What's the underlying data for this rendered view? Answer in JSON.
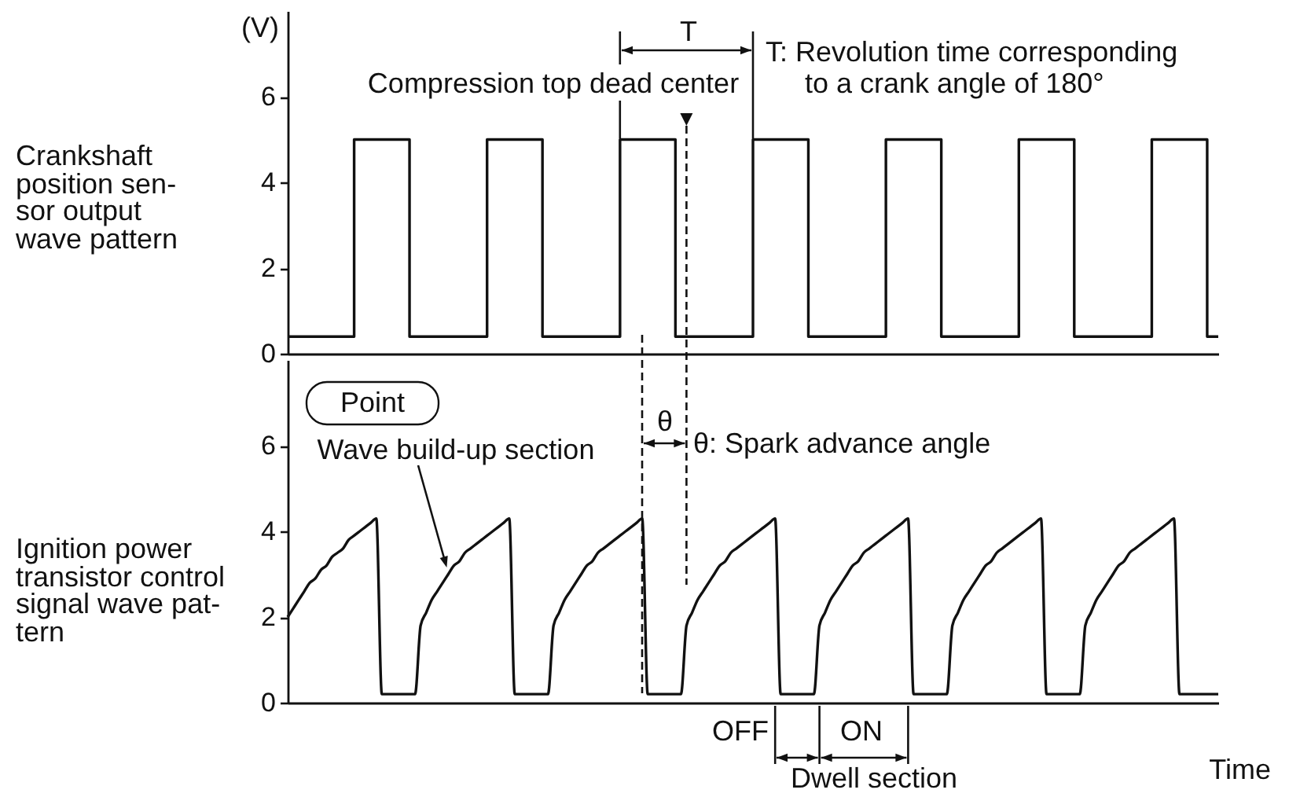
{
  "chart_data": [
    {
      "type": "step",
      "title": "Crankshaft\nposition sen-\nsor output\nwave pattern",
      "ylabel": "(V)",
      "categories": [
        null,
        null,
        null,
        null,
        null,
        null,
        null,
        null,
        null,
        null,
        null,
        null,
        null,
        null,
        null,
        null,
        null,
        null,
        null,
        null,
        null,
        null,
        null,
        null,
        null,
        null,
        null,
        null,
        null,
        null,
        null,
        null,
        null,
        null,
        null,
        null,
        null,
        null,
        null,
        null,
        null,
        null,
        null,
        null,
        null,
        null,
        null,
        null,
        null,
        null,
        null,
        null,
        null,
        null,
        null,
        null,
        null,
        null,
        null,
        null,
        null,
        null,
        null,
        null,
        null,
        null,
        null,
        null,
        null,
        null,
        null,
        null,
        null,
        null,
        null,
        null,
        null,
        null,
        null,
        null,
        null,
        null,
        null,
        null,
        null
      ],
      "values": [
        0.4,
        0.4,
        0.4,
        0.4,
        0.4,
        0.4,
        5,
        5,
        5,
        5,
        5,
        0.4,
        0.4,
        0.4,
        0.4,
        0.4,
        0.4,
        0.4,
        5,
        5,
        5,
        5,
        5,
        0.4,
        0.4,
        0.4,
        0.4,
        0.4,
        0.4,
        0.4,
        5,
        5,
        5,
        5,
        5,
        0.4,
        0.4,
        0.4,
        0.4,
        0.4,
        0.4,
        0.4,
        5,
        5,
        5,
        5,
        5,
        0.4,
        0.4,
        0.4,
        0.4,
        0.4,
        0.4,
        0.4,
        5,
        5,
        5,
        5,
        5,
        0.4,
        0.4,
        0.4,
        0.4,
        0.4,
        0.4,
        0.4,
        5,
        5,
        5,
        5,
        5,
        0.4,
        0.4,
        0.4,
        0.4,
        0.4,
        0.4,
        0.4,
        5,
        5,
        5,
        5,
        5,
        0.4,
        0.4
      ],
      "color": "#111111",
      "ylim": [
        0,
        8
      ],
      "yticks": [
        0,
        2,
        4,
        6
      ],
      "tick_labels": "y",
      "annotations": [
        "T",
        "T: Revolution time corresponding\nto a crank angle of 180°",
        "Compression top dead center"
      ]
    },
    {
      "type": "line",
      "title": "Ignition power\ntransistor control\nsignal wave pat-\ntern",
      "xlabel": "Time",
      "categories": [
        null,
        null,
        null,
        null,
        null,
        null,
        null,
        null,
        null,
        null,
        null,
        null,
        null,
        null,
        null,
        null,
        null,
        null,
        null,
        null,
        null,
        null,
        null,
        null,
        null,
        null,
        null,
        null,
        null,
        null,
        null,
        null,
        null,
        null,
        null,
        null,
        null,
        null,
        null,
        null,
        null,
        null,
        null,
        null,
        null,
        null,
        null,
        null,
        null,
        null,
        null,
        null,
        null,
        null,
        null,
        null,
        null,
        null,
        null,
        null,
        null,
        null,
        null,
        null,
        null,
        null,
        null,
        null,
        null,
        null,
        null,
        null,
        null,
        null,
        null,
        null,
        null,
        null,
        null,
        null,
        null,
        null,
        null,
        null,
        null,
        null,
        null,
        null,
        null,
        null,
        null,
        null,
        null,
        null,
        null,
        null,
        null,
        null,
        null,
        null,
        null,
        null,
        null,
        null,
        null,
        null,
        null,
        null,
        null,
        null,
        null,
        null,
        null,
        null,
        null,
        null,
        null,
        null,
        null,
        null,
        null,
        null,
        null,
        null,
        null,
        null,
        null,
        null,
        null,
        null,
        null,
        null,
        null,
        null,
        null,
        null,
        null,
        null,
        null,
        null,
        null,
        null,
        null,
        null,
        null,
        null,
        null,
        null,
        null,
        null,
        null,
        null,
        null,
        null,
        null,
        null,
        null,
        null,
        null,
        null,
        null,
        null,
        null,
        null,
        null,
        null,
        null,
        null,
        null
      ],
      "values": [
        2.0,
        2.2,
        2.4,
        2.6,
        2.8,
        2.9,
        3.1,
        3.2,
        3.4,
        3.5,
        3.6,
        3.8,
        3.9,
        4.0,
        4.1,
        4.2,
        4.3,
        0.2,
        0.2,
        0.2,
        0.2,
        0.2,
        0.2,
        0.2,
        1.8,
        2.1,
        2.4,
        2.6,
        2.8,
        3.0,
        3.2,
        3.3,
        3.5,
        3.6,
        3.7,
        3.8,
        3.9,
        4.0,
        4.1,
        4.2,
        4.3,
        0.2,
        0.2,
        0.2,
        0.2,
        0.2,
        0.2,
        0.2,
        1.8,
        2.1,
        2.4,
        2.6,
        2.8,
        3.0,
        3.2,
        3.3,
        3.5,
        3.6,
        3.7,
        3.8,
        3.9,
        4.0,
        4.1,
        4.2,
        4.3,
        0.2,
        0.2,
        0.2,
        0.2,
        0.2,
        0.2,
        0.2,
        1.8,
        2.1,
        2.4,
        2.6,
        2.8,
        3.0,
        3.2,
        3.3,
        3.5,
        3.6,
        3.7,
        3.8,
        3.9,
        4.0,
        4.1,
        4.2,
        4.3,
        0.2,
        0.2,
        0.2,
        0.2,
        0.2,
        0.2,
        0.2,
        1.8,
        2.1,
        2.4,
        2.6,
        2.8,
        3.0,
        3.2,
        3.3,
        3.5,
        3.6,
        3.7,
        3.8,
        3.9,
        4.0,
        4.1,
        4.2,
        4.3,
        0.2,
        0.2,
        0.2,
        0.2,
        0.2,
        0.2,
        0.2,
        1.8,
        2.1,
        2.4,
        2.6,
        2.8,
        3.0,
        3.2,
        3.3,
        3.5,
        3.6,
        3.7,
        3.8,
        3.9,
        4.0,
        4.1,
        4.2,
        4.3,
        0.2,
        0.2,
        0.2,
        0.2,
        0.2,
        0.2,
        0.2,
        1.8,
        2.1,
        2.4,
        2.6,
        2.8,
        3.0,
        3.2,
        3.3,
        3.5,
        3.6,
        3.7,
        3.8,
        3.9,
        4.0,
        4.1,
        4.2,
        4.3,
        0.2,
        0.2,
        0.2,
        0.2,
        0.2,
        0.2,
        0.2,
        0.2
      ],
      "color": "#111111",
      "ylim": [
        0,
        8
      ],
      "yticks": [
        0,
        2,
        4,
        6
      ],
      "tick_labels": "y",
      "annotations": [
        "Point",
        "Wave build-up section",
        "θ",
        "θ: Spark advance angle",
        "OFF",
        "ON",
        "Dwell section"
      ]
    }
  ]
}
